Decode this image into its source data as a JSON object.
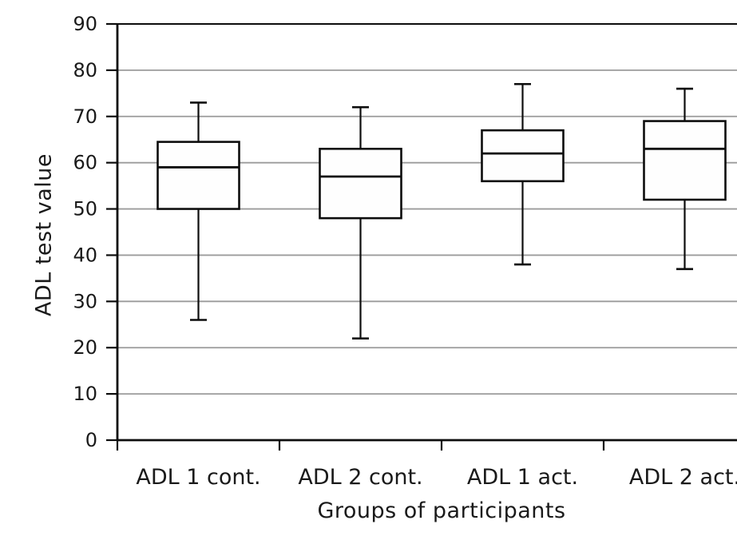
{
  "chart_data": {
    "type": "boxplot",
    "title": "",
    "xlabel": "Groups of participants",
    "ylabel": "ADL test value",
    "ylim": [
      0,
      90
    ],
    "yticks": [
      0,
      10,
      20,
      30,
      40,
      50,
      60,
      70,
      80,
      90
    ],
    "grid": true,
    "legend": false,
    "categories": [
      "ADL 1 cont.",
      "ADL 2 cont.",
      "ADL 1 act.",
      "ADL 2 act."
    ],
    "series": [
      {
        "category": "ADL 1 cont.",
        "min": 26,
        "q1": 50,
        "median": 59,
        "q3": 64.5,
        "max": 73
      },
      {
        "category": "ADL 2 cont.",
        "min": 22,
        "q1": 48,
        "median": 57,
        "q3": 63,
        "max": 72
      },
      {
        "category": "ADL 1 act.",
        "min": 38,
        "q1": 56,
        "median": 62,
        "q3": 67,
        "max": 77
      },
      {
        "category": "ADL 2 act.",
        "min": 37,
        "q1": 52,
        "median": 63,
        "q3": 69,
        "max": 76
      }
    ]
  },
  "colors": {
    "line": "#0d0d0d",
    "grid": "#9b9b9b",
    "box_fill": "#fefefe",
    "background": "#ffffff",
    "text": "#1a1a1a"
  }
}
